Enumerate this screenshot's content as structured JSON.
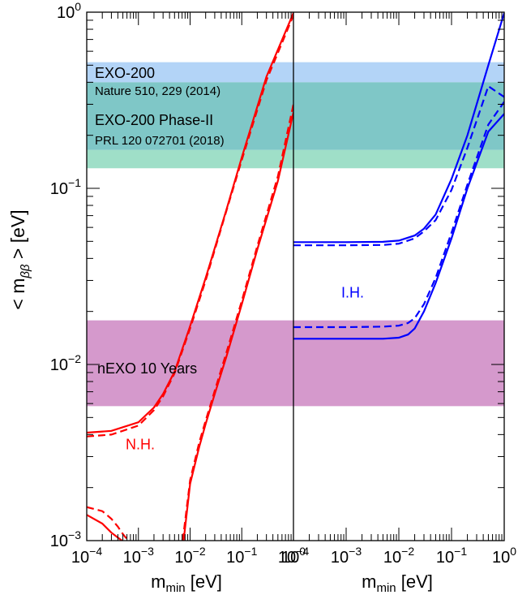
{
  "chart_data": {
    "type": "line",
    "log_scale": {
      "x": true,
      "y": true
    },
    "grid": false,
    "ylabel": {
      "pre": "< m",
      "sub": "ββ",
      "post": " > [eV]"
    },
    "y_ticks": [
      {
        "value": 0.001,
        "label": "10",
        "exp": "−3"
      },
      {
        "value": 0.01,
        "label": "10",
        "exp": "−2"
      },
      {
        "value": 0.1,
        "label": "10",
        "exp": "−1"
      },
      {
        "value": 1,
        "label": "10",
        "exp": "0"
      }
    ],
    "ylim": [
      0.001,
      1
    ],
    "colors": {
      "nh": "#ff0000",
      "ih": "#0000ff",
      "exo200": "#b3d4f7",
      "exo_overlap": "#7fc7c7",
      "exo_phase2": "#9fdfc8",
      "nexo": "#d599cc"
    },
    "bands": [
      {
        "name": "EXO-200",
        "ymin": 0.4,
        "ymax": 0.52,
        "color": "exo200"
      },
      {
        "name": "overlap",
        "ymin": 0.165,
        "ymax": 0.4,
        "color": "exo_overlap"
      },
      {
        "name": "EXO-200 Phase-II",
        "ymin": 0.13,
        "ymax": 0.165,
        "color": "exo_phase2"
      },
      {
        "name": "nEXO 10 Years",
        "ymin": 0.0058,
        "ymax": 0.0178,
        "color": "nexo"
      }
    ],
    "panels": [
      {
        "id": "nh",
        "xlabel": {
          "pre": "m",
          "sub": "min",
          "post": " [eV]"
        },
        "xlim": [
          0.0001,
          1
        ],
        "x_ticks": [
          {
            "value": 0.0001,
            "label": "10",
            "exp": "−4"
          },
          {
            "value": 0.001,
            "label": "10",
            "exp": "−3"
          },
          {
            "value": 0.01,
            "label": "10",
            "exp": "−2"
          },
          {
            "value": 0.1,
            "label": "10",
            "exp": "−1"
          },
          {
            "value": 1,
            "label": "10",
            "exp": "0"
          }
        ],
        "label": "N.H.",
        "series": [
          {
            "dashed": false,
            "color": "nh",
            "x": [
              0.0001,
              0.0003,
              0.001,
              0.002,
              0.003,
              0.005,
              0.01,
              0.02,
              0.05,
              0.1,
              0.3,
              1
            ],
            "y": [
              0.0041,
              0.0042,
              0.0047,
              0.0057,
              0.0068,
              0.0091,
              0.0165,
              0.031,
              0.075,
              0.15,
              0.43,
              0.99
            ]
          },
          {
            "dashed": true,
            "color": "nh",
            "x": [
              0.0001,
              0.0003,
              0.001,
              0.002,
              0.003,
              0.005,
              0.01,
              0.02,
              0.05,
              0.1,
              0.3,
              1
            ],
            "y": [
              0.0039,
              0.004,
              0.0045,
              0.0055,
              0.0066,
              0.0089,
              0.016,
              0.03,
              0.074,
              0.145,
              0.41,
              0.96
            ]
          },
          {
            "dashed": false,
            "color": "nh",
            "x": [
              0.0001,
              0.0002,
              0.0003,
              0.0004,
              0.00048
            ],
            "y": [
              0.0014,
              0.00125,
              0.00111,
              0.00104,
              0.001
            ]
          },
          {
            "dashed": true,
            "color": "nh",
            "x": [
              0.0001,
              0.0002,
              0.0003,
              0.0004,
              0.0005,
              0.0006,
              0.00065
            ],
            "y": [
              0.00155,
              0.00147,
              0.00133,
              0.0012,
              0.00109,
              0.00102,
              0.001
            ]
          },
          {
            "dashed": false,
            "color": "nh",
            "x": [
              0.0075,
              0.01,
              0.015,
              0.02,
              0.03,
              0.05,
              0.1,
              0.2,
              0.5,
              1
            ],
            "y": [
              0.001,
              0.0021,
              0.0034,
              0.0046,
              0.0068,
              0.011,
              0.022,
              0.045,
              0.11,
              0.27
            ]
          },
          {
            "dashed": true,
            "color": "nh",
            "x": [
              0.0072,
              0.01,
              0.015,
              0.02,
              0.03,
              0.05,
              0.1,
              0.2,
              0.5,
              1
            ],
            "y": [
              0.001,
              0.0022,
              0.0036,
              0.0048,
              0.0071,
              0.0116,
              0.023,
              0.047,
              0.117,
              0.3
            ]
          }
        ]
      },
      {
        "id": "ih",
        "xlabel": {
          "pre": "m",
          "sub": "min",
          "post": " [eV]"
        },
        "xlim": [
          0.0001,
          1
        ],
        "x_ticks": [
          {
            "value": 0.0001,
            "label": "10",
            "exp": "−4"
          },
          {
            "value": 0.001,
            "label": "10",
            "exp": "−3"
          },
          {
            "value": 0.01,
            "label": "10",
            "exp": "−2"
          },
          {
            "value": 0.1,
            "label": "10",
            "exp": "−1"
          },
          {
            "value": 1,
            "label": "10",
            "exp": "0"
          }
        ],
        "label": "I.H.",
        "series": [
          {
            "dashed": false,
            "color": "ih",
            "x": [
              0.0001,
              0.001,
              0.005,
              0.01,
              0.02,
              0.03,
              0.05,
              0.1,
              0.2,
              0.5,
              1
            ],
            "y": [
              0.0495,
              0.0495,
              0.0497,
              0.0505,
              0.054,
              0.059,
              0.071,
              0.113,
              0.2,
              0.5,
              0.99
            ]
          },
          {
            "dashed": true,
            "color": "ih",
            "x": [
              0.0001,
              0.001,
              0.005,
              0.01,
              0.02,
              0.03,
              0.05,
              0.1,
              0.2,
              0.5,
              1
            ],
            "y": [
              0.0475,
              0.0475,
              0.0477,
              0.0485,
              0.052,
              0.057,
              0.066,
              0.098,
              0.17,
              0.38,
              0.33
            ]
          },
          {
            "dashed": true,
            "color": "ih",
            "x": [
              0.0001,
              0.001,
              0.005,
              0.01,
              0.015,
              0.02,
              0.03,
              0.05,
              0.1,
              0.2,
              0.5,
              1
            ],
            "y": [
              0.0163,
              0.0163,
              0.0164,
              0.0166,
              0.0172,
              0.0183,
              0.022,
              0.031,
              0.056,
              0.105,
              0.23,
              0.31
            ]
          },
          {
            "dashed": false,
            "color": "ih",
            "x": [
              0.0001,
              0.001,
              0.005,
              0.01,
              0.015,
              0.02,
              0.03,
              0.05,
              0.1,
              0.2,
              0.5,
              1
            ],
            "y": [
              0.014,
              0.014,
              0.014,
              0.0142,
              0.0148,
              0.016,
              0.02,
              0.029,
              0.052,
              0.1,
              0.21,
              0.265
            ]
          }
        ]
      }
    ],
    "annotations": [
      {
        "id": "exo200",
        "text": "EXO-200",
        "size": 18
      },
      {
        "id": "exo200_ref",
        "text": "Nature 510, 229 (2014)",
        "size": 15
      },
      {
        "id": "exo2",
        "text": "EXO-200 Phase-II",
        "size": 18
      },
      {
        "id": "exo2_ref",
        "text": "PRL 120 072701 (2018)",
        "size": 15
      },
      {
        "id": "nexo",
        "text": "nEXO 10 Years",
        "size": 18
      }
    ]
  }
}
